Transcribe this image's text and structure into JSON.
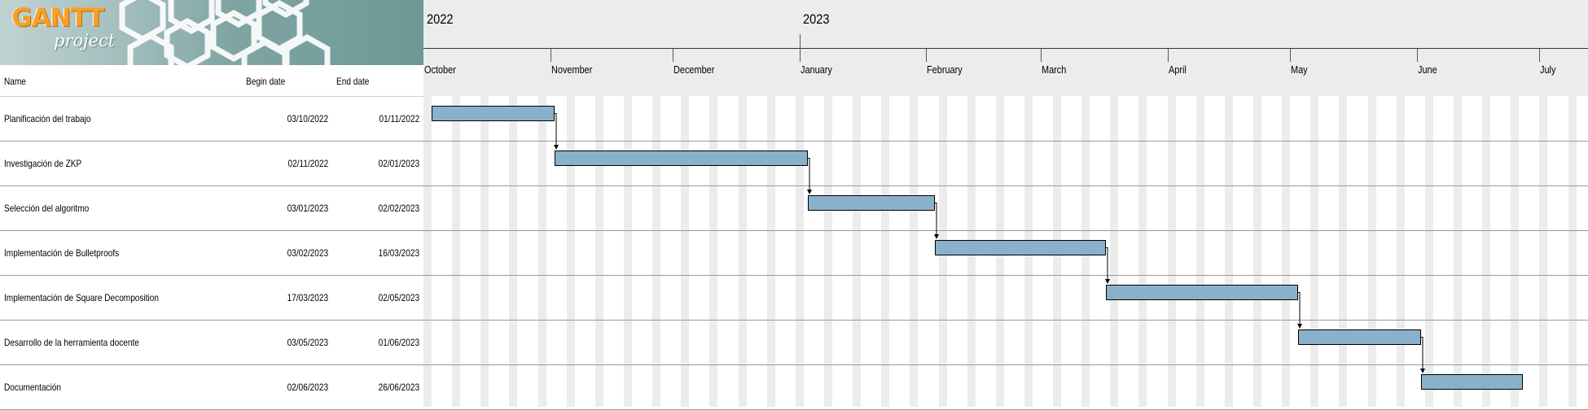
{
  "logo": {
    "title": "GANTT",
    "subtitle": "project"
  },
  "columns": {
    "name": "Name",
    "begin": "Begin date",
    "end": "End date"
  },
  "timeline": {
    "years": [
      {
        "label": "2022",
        "date": "2022-10-01"
      },
      {
        "label": "2023",
        "date": "2023-01-01"
      }
    ],
    "months": [
      {
        "label": "October",
        "date": "2022-10-01"
      },
      {
        "label": "November",
        "date": "2022-11-01"
      },
      {
        "label": "December",
        "date": "2022-12-01"
      },
      {
        "label": "January",
        "date": "2023-01-01"
      },
      {
        "label": "February",
        "date": "2023-02-01"
      },
      {
        "label": "March",
        "date": "2023-03-01"
      },
      {
        "label": "April",
        "date": "2023-04-01"
      },
      {
        "label": "May",
        "date": "2023-05-01"
      },
      {
        "label": "June",
        "date": "2023-06-01"
      },
      {
        "label": "July",
        "date": "2023-07-01"
      }
    ]
  },
  "tasks": [
    {
      "name": "Planificación del trabajo",
      "begin": "03/10/2022",
      "end": "01/11/2022"
    },
    {
      "name": "Investigación de ZKP",
      "begin": "02/11/2022",
      "end": "02/01/2023"
    },
    {
      "name": "Selección del algoritmo",
      "begin": "03/01/2023",
      "end": "02/02/2023"
    },
    {
      "name": "Implementación de Bulletproofs",
      "begin": "03/02/2023",
      "end": "16/03/2023"
    },
    {
      "name": "Implementación de Square Decomposition",
      "begin": "17/03/2023",
      "end": "02/05/2023"
    },
    {
      "name": "Desarrollo de la herramienta docente",
      "begin": "03/05/2023",
      "end": "01/06/2023"
    },
    {
      "name": "Documentación",
      "begin": "02/06/2023",
      "end": "26/06/2023"
    }
  ],
  "colors": {
    "bar": "#8ab1cb",
    "weekend": "#ececec",
    "logo_accent": "#f5a02a"
  }
}
